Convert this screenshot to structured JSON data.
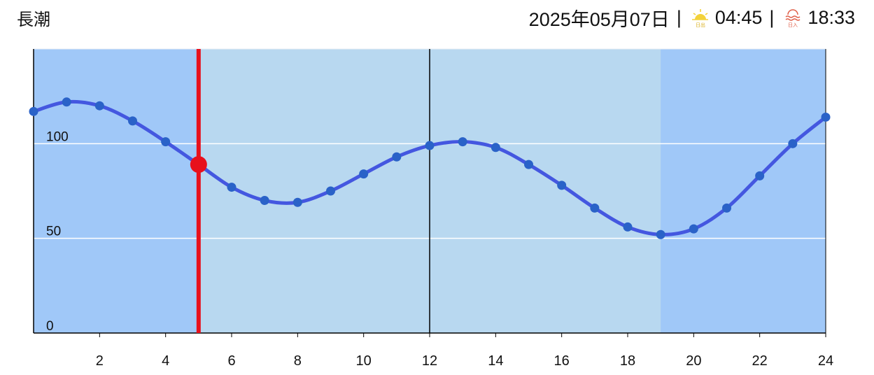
{
  "chart_data": {
    "type": "line",
    "title": "長潮",
    "header": {
      "date": "2025年05月07日",
      "separator": "|",
      "sunrise_label": "日出",
      "sunrise": "04:45",
      "sunset_label": "日入",
      "sunset": "18:33"
    },
    "x": [
      0,
      1,
      2,
      3,
      4,
      5,
      6,
      7,
      8,
      9,
      10,
      11,
      12,
      13,
      14,
      15,
      16,
      17,
      18,
      19,
      20,
      21,
      22,
      23,
      24
    ],
    "series": [
      {
        "color": "#4457e0",
        "values": [
          117,
          122,
          120,
          112,
          101,
          89,
          77,
          70,
          69,
          75,
          84,
          93,
          99,
          101,
          98,
          89,
          78,
          66,
          56,
          52,
          55,
          66,
          83,
          100,
          114
        ]
      }
    ],
    "xlim": [
      0,
      24
    ],
    "ylim": [
      0,
      150
    ],
    "xticks": [
      2,
      4,
      6,
      8,
      10,
      12,
      14,
      16,
      18,
      20,
      22,
      24
    ],
    "yticks": [
      0,
      50,
      100
    ],
    "grid": true,
    "daylight": [
      5,
      19
    ],
    "noon_line": 12,
    "current": {
      "x": 5,
      "value": 89,
      "color": "#e8101c"
    }
  }
}
